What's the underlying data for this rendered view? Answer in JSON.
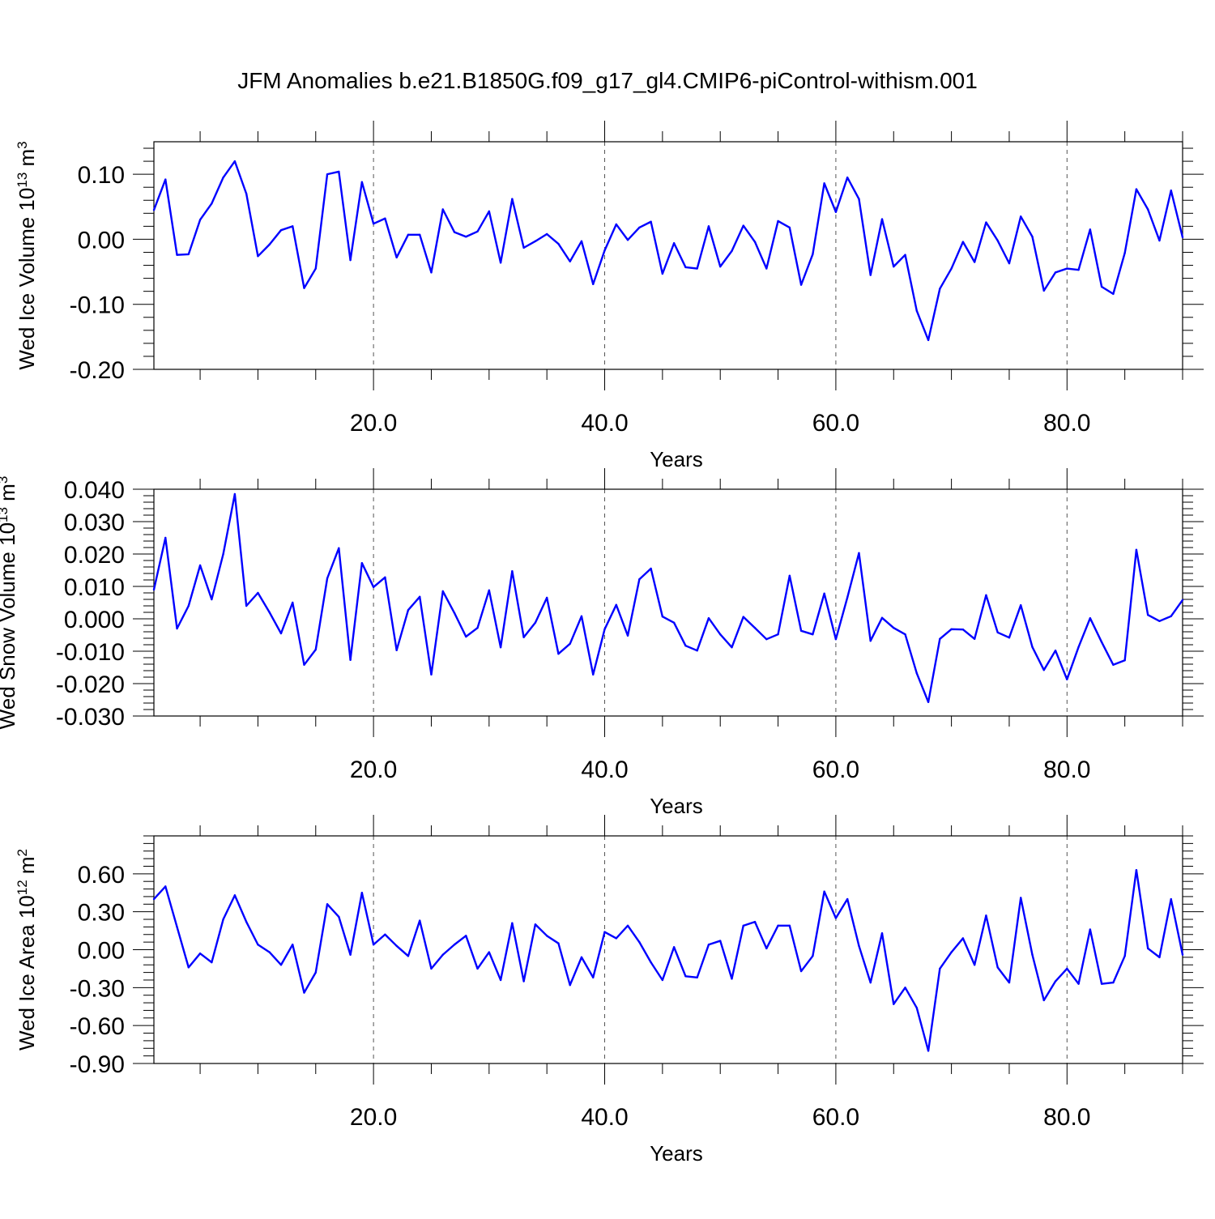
{
  "title": "JFM Anomalies b.e21.B1850G.f09_g17_gl4.CMIP6-piControl-withism.001",
  "style": {
    "line_color": "#0000ff",
    "axis_color": "#000000",
    "grid_color": "#555555"
  },
  "chart_data": [
    {
      "type": "line",
      "xlabel": "Years",
      "ylabel": {
        "text": "Wed Ice Volume 10",
        "exp": "13",
        "unit": " m",
        "unit_exp": "3"
      },
      "xlim": [
        1,
        90
      ],
      "ylim": [
        -0.2,
        0.15
      ],
      "xticks": [
        20,
        40,
        60,
        80
      ],
      "xtick_labels": [
        "20.0",
        "40.0",
        "60.0",
        "80.0"
      ],
      "yticks": [
        -0.2,
        -0.1,
        0.0,
        0.1
      ],
      "ytick_labels": [
        "-0.20",
        "-0.10",
        "0.00",
        "0.10"
      ],
      "grid": "vertical dashed at major x ticks",
      "series": [
        {
          "x": [
            1,
            2,
            3,
            4,
            5,
            6,
            7,
            8,
            9,
            10,
            11,
            12,
            13,
            14,
            15,
            16,
            17,
            18,
            19,
            20,
            21,
            22,
            23,
            24,
            25,
            26,
            27,
            28,
            29,
            30,
            31,
            32,
            33,
            34,
            35,
            36,
            37,
            38,
            39,
            40,
            41,
            42,
            43,
            44,
            45,
            46,
            47,
            48,
            49,
            50,
            51,
            52,
            53,
            54,
            55,
            56,
            57,
            58,
            59,
            60,
            61,
            62,
            63,
            64,
            65,
            66,
            67,
            68,
            69,
            70,
            71,
            72,
            73,
            74,
            75,
            76,
            77,
            78,
            79,
            80,
            81,
            82,
            83,
            84,
            85,
            86,
            87,
            88,
            89,
            90
          ],
          "values": [
            0.045,
            0.092,
            -0.024,
            -0.023,
            0.03,
            0.055,
            0.095,
            0.12,
            0.07,
            -0.026,
            -0.008,
            0.014,
            0.02,
            -0.075,
            -0.045,
            0.1,
            0.104,
            -0.032,
            0.088,
            0.024,
            0.032,
            -0.028,
            0.007,
            0.007,
            -0.051,
            0.046,
            0.011,
            0.004,
            0.012,
            0.043,
            -0.036,
            0.062,
            -0.013,
            -0.003,
            0.008,
            -0.007,
            -0.034,
            -0.003,
            -0.069,
            -0.017,
            0.023,
            -0.001,
            0.018,
            0.027,
            -0.053,
            -0.006,
            -0.043,
            -0.045,
            0.02,
            -0.042,
            -0.018,
            0.021,
            -0.004,
            -0.045,
            0.028,
            0.018,
            -0.07,
            -0.023,
            0.086,
            0.042,
            0.095,
            0.062,
            -0.055,
            0.031,
            -0.042,
            -0.024,
            -0.11,
            -0.155,
            -0.076,
            -0.045,
            -0.004,
            -0.035,
            0.026,
            -0.002,
            -0.037,
            0.035,
            0.004,
            -0.079,
            -0.051,
            -0.045,
            -0.047,
            0.015,
            -0.073,
            -0.084,
            -0.021,
            0.077,
            0.046,
            -0.002,
            0.075,
            0.003
          ]
        }
      ]
    },
    {
      "type": "line",
      "xlabel": "Years",
      "ylabel": {
        "text": "Wed Snow Volume 10",
        "exp": "13",
        "unit": " m",
        "unit_exp": "3"
      },
      "xlim": [
        1,
        90
      ],
      "ylim": [
        -0.03,
        0.04
      ],
      "xticks": [
        20,
        40,
        60,
        80
      ],
      "xtick_labels": [
        "20.0",
        "40.0",
        "60.0",
        "80.0"
      ],
      "yticks": [
        -0.03,
        -0.02,
        -0.01,
        0.0,
        0.01,
        0.02,
        0.03,
        0.04
      ],
      "ytick_labels": [
        "-0.030",
        "-0.020",
        "-0.010",
        "0.000",
        "0.010",
        "0.020",
        "0.030",
        "0.040"
      ],
      "grid": "vertical dashed at major x ticks",
      "series": [
        {
          "x": [
            1,
            2,
            3,
            4,
            5,
            6,
            7,
            8,
            9,
            10,
            11,
            12,
            13,
            14,
            15,
            16,
            17,
            18,
            19,
            20,
            21,
            22,
            23,
            24,
            25,
            26,
            27,
            28,
            29,
            30,
            31,
            32,
            33,
            34,
            35,
            36,
            37,
            38,
            39,
            40,
            41,
            42,
            43,
            44,
            45,
            46,
            47,
            48,
            49,
            50,
            51,
            52,
            53,
            54,
            55,
            56,
            57,
            58,
            59,
            60,
            61,
            62,
            63,
            64,
            65,
            66,
            67,
            68,
            69,
            70,
            71,
            72,
            73,
            74,
            75,
            76,
            77,
            78,
            79,
            80,
            81,
            82,
            83,
            84,
            85,
            86,
            87,
            88,
            89,
            90
          ],
          "values": [
            0.009,
            0.025,
            -0.003,
            0.004,
            0.0165,
            0.006,
            0.02,
            0.0385,
            0.004,
            0.008,
            0.002,
            -0.0045,
            0.005,
            -0.0142,
            -0.0095,
            0.0125,
            0.0218,
            -0.0127,
            0.0172,
            0.0098,
            0.0128,
            -0.0097,
            0.0027,
            0.0068,
            -0.0172,
            0.0085,
            0.0018,
            -0.0055,
            -0.0028,
            0.0088,
            -0.0088,
            0.0147,
            -0.0057,
            -0.0012,
            0.0065,
            -0.0108,
            -0.0077,
            0.0008,
            -0.0172,
            -0.0032,
            0.0043,
            -0.0052,
            0.0122,
            0.0155,
            0.0007,
            -0.0012,
            -0.0083,
            -0.0098,
            0.0002,
            -0.0048,
            -0.0088,
            0.0006,
            -0.0028,
            -0.0063,
            -0.0048,
            0.0133,
            -0.0037,
            -0.0048,
            0.0078,
            -0.0063,
            0.0066,
            0.0203,
            -0.0068,
            0.0003,
            -0.0028,
            -0.0048,
            -0.0168,
            -0.0257,
            -0.0062,
            -0.0032,
            -0.0033,
            -0.0062,
            0.0073,
            -0.0042,
            -0.0058,
            0.0042,
            -0.0087,
            -0.0158,
            -0.0098,
            -0.0187,
            -0.0087,
            0.0002,
            -0.0072,
            -0.0142,
            -0.0128,
            0.0213,
            0.0012,
            -0.0007,
            0.0008,
            0.0058
          ]
        }
      ]
    },
    {
      "type": "line",
      "xlabel": "Years",
      "ylabel": {
        "text": "Wed Ice Area 10",
        "exp": "12",
        "unit": " m",
        "unit_exp": "2"
      },
      "xlim": [
        1,
        90
      ],
      "ylim": [
        -0.9,
        0.9
      ],
      "xticks": [
        20,
        40,
        60,
        80
      ],
      "xtick_labels": [
        "20.0",
        "40.0",
        "60.0",
        "80.0"
      ],
      "yticks": [
        -0.9,
        -0.6,
        -0.3,
        0.0,
        0.3,
        0.6
      ],
      "ytick_labels": [
        "-0.90",
        "-0.60",
        "-0.30",
        "0.00",
        "0.30",
        "0.60"
      ],
      "grid": "vertical dashed at major x ticks",
      "series": [
        {
          "x": [
            1,
            2,
            3,
            4,
            5,
            6,
            7,
            8,
            9,
            10,
            11,
            12,
            13,
            14,
            15,
            16,
            17,
            18,
            19,
            20,
            21,
            22,
            23,
            24,
            25,
            26,
            27,
            28,
            29,
            30,
            31,
            32,
            33,
            34,
            35,
            36,
            37,
            38,
            39,
            40,
            41,
            42,
            43,
            44,
            45,
            46,
            47,
            48,
            49,
            50,
            51,
            52,
            53,
            54,
            55,
            56,
            57,
            58,
            59,
            60,
            61,
            62,
            63,
            64,
            65,
            66,
            67,
            68,
            69,
            70,
            71,
            72,
            73,
            74,
            75,
            76,
            77,
            78,
            79,
            80,
            81,
            82,
            83,
            84,
            85,
            86,
            87,
            88,
            89,
            90
          ],
          "values": [
            0.4,
            0.5,
            0.18,
            -0.14,
            -0.03,
            -0.1,
            0.24,
            0.43,
            0.22,
            0.04,
            -0.02,
            -0.12,
            0.04,
            -0.34,
            -0.18,
            0.36,
            0.26,
            -0.04,
            0.45,
            0.04,
            0.12,
            0.03,
            -0.05,
            0.23,
            -0.15,
            -0.04,
            0.04,
            0.11,
            -0.15,
            -0.02,
            -0.24,
            0.21,
            -0.25,
            0.2,
            0.11,
            0.05,
            -0.28,
            -0.06,
            -0.22,
            0.14,
            0.09,
            0.19,
            0.06,
            -0.1,
            -0.24,
            0.02,
            -0.21,
            -0.22,
            0.04,
            0.07,
            -0.23,
            0.19,
            0.22,
            0.01,
            0.19,
            0.19,
            -0.17,
            -0.05,
            0.46,
            0.25,
            0.4,
            0.03,
            -0.26,
            0.13,
            -0.43,
            -0.3,
            -0.46,
            -0.8,
            -0.15,
            -0.02,
            0.09,
            -0.12,
            0.27,
            -0.14,
            -0.26,
            0.41,
            -0.04,
            -0.4,
            -0.25,
            -0.15,
            -0.27,
            0.16,
            -0.27,
            -0.26,
            -0.05,
            0.63,
            0.01,
            -0.06,
            0.4,
            -0.04
          ]
        }
      ]
    }
  ]
}
